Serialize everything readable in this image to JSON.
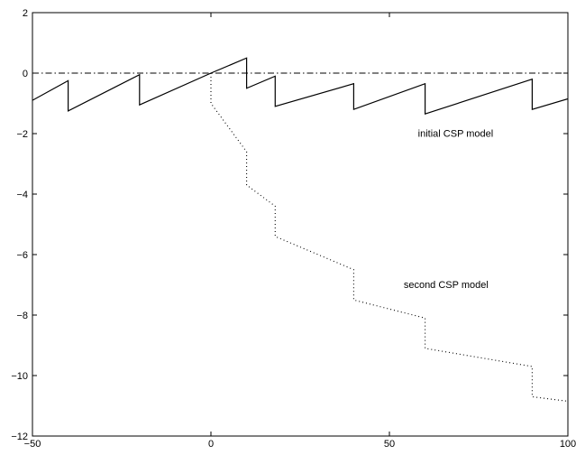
{
  "chart_data": {
    "type": "line",
    "title": "",
    "xlabel": "",
    "ylabel": "",
    "xlim": [
      -50,
      100
    ],
    "ylim": [
      -12,
      2
    ],
    "x_ticks": [
      -50,
      0,
      50,
      100
    ],
    "y_ticks": [
      2,
      0,
      -2,
      -4,
      -6,
      -8,
      -10,
      -12
    ],
    "x_tick_labels": [
      "−50",
      "0",
      "50",
      "100"
    ],
    "y_tick_labels": [
      "2",
      "0",
      "−2",
      "−4",
      "−6",
      "−8",
      "−10",
      "−12"
    ],
    "grid": false,
    "reference_line": {
      "y": 0,
      "style": "dash-dot"
    },
    "series": [
      {
        "style": "solid",
        "points": [
          [
            -50,
            -0.9
          ],
          [
            -40,
            -0.25
          ],
          [
            -40,
            -1.25
          ],
          [
            -20,
            -0.05
          ],
          [
            -20,
            -1.05
          ],
          [
            0,
            0.0
          ],
          [
            10,
            0.5
          ],
          [
            10,
            -0.5
          ],
          [
            18,
            -0.1
          ],
          [
            18,
            -1.1
          ],
          [
            40,
            -0.35
          ],
          [
            40,
            -1.2
          ],
          [
            60,
            -0.35
          ],
          [
            60,
            -1.35
          ],
          [
            90,
            -0.2
          ],
          [
            90,
            -1.2
          ],
          [
            100,
            -0.85
          ]
        ]
      },
      {
        "style": "dotted",
        "points": [
          [
            0,
            0.0
          ],
          [
            0,
            -1.0
          ],
          [
            10,
            -2.6
          ],
          [
            10,
            -3.7
          ],
          [
            18,
            -4.4
          ],
          [
            18,
            -5.4
          ],
          [
            40,
            -6.5
          ],
          [
            40,
            -7.5
          ],
          [
            60,
            -8.1
          ],
          [
            60,
            -9.1
          ],
          [
            90,
            -9.7
          ],
          [
            90,
            -10.7
          ],
          [
            100,
            -10.85
          ]
        ]
      }
    ],
    "annotations": [
      {
        "text": "initial CSP model",
        "x": 58,
        "y": -2.1
      },
      {
        "text": "second CSP model",
        "x": 54,
        "y": -7.1
      }
    ]
  }
}
